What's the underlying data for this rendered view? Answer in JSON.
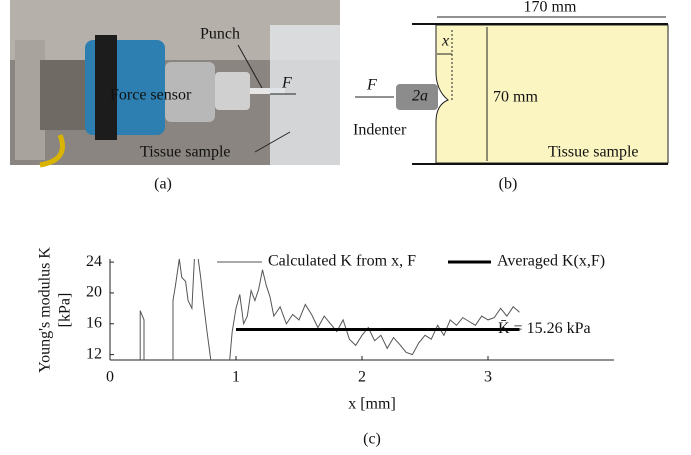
{
  "panel_a": {
    "labels": {
      "punch": "Punch",
      "force": "F",
      "sensor": "Force sensor",
      "sample": "Tissue sample"
    },
    "caption": "(a)"
  },
  "panel_b": {
    "labels": {
      "length": "170 mm",
      "x": "x",
      "force": "F",
      "diameter": "2a",
      "height": "70 mm",
      "indenter": "Indenter",
      "sample": "Tissue sample"
    },
    "caption": "(b)"
  },
  "chart_data": {
    "type": "line",
    "ylabel": [
      "Young's modulus K",
      "[kPa]"
    ],
    "xlabel": "x [mm]",
    "caption": "(c)",
    "annotation": "K̄ = 15.26 kPa",
    "xlim": [
      0,
      4
    ],
    "ylim": [
      11.3,
      24.4
    ],
    "xticks": [
      0,
      1,
      2,
      3
    ],
    "yticks": [
      12,
      16,
      20,
      24
    ],
    "series": [
      {
        "name": "Calculated K from x, F",
        "color": "#555555",
        "x": [
          0.24,
          0.24,
          0.27,
          0.27,
          0.4,
          0.5,
          0.5,
          0.52,
          0.55,
          0.57,
          0.6,
          0.62,
          0.65,
          0.67,
          0.68,
          0.7,
          0.72,
          0.74,
          0.77,
          0.8,
          0.9,
          0.95,
          0.97,
          1.0,
          1.03,
          1.06,
          1.09,
          1.12,
          1.15,
          1.18,
          1.21,
          1.24,
          1.27,
          1.3,
          1.35,
          1.4,
          1.45,
          1.5,
          1.55,
          1.6,
          1.65,
          1.7,
          1.75,
          1.8,
          1.85,
          1.9,
          1.95,
          2.0,
          2.05,
          2.1,
          2.15,
          2.2,
          2.25,
          2.3,
          2.35,
          2.4,
          2.45,
          2.5,
          2.55,
          2.6,
          2.65,
          2.7,
          2.75,
          2.8,
          2.85,
          2.9,
          2.95,
          3.0,
          3.05,
          3.1,
          3.15,
          3.2,
          3.25
        ],
        "values": [
          11.3,
          17.7,
          16.5,
          11.3,
          null,
          11.3,
          19,
          21,
          24.4,
          22,
          21.5,
          19,
          18,
          24.4,
          null,
          24.4,
          22,
          19,
          15,
          11.3,
          null,
          11.3,
          15,
          18,
          19.8,
          16,
          17,
          20.3,
          19,
          20.5,
          23,
          21,
          19.5,
          17,
          18.2,
          16,
          17.2,
          16.5,
          18.5,
          17.2,
          15.5,
          17,
          16,
          15,
          16.5,
          14,
          13.2,
          14.5,
          15.5,
          13.8,
          14.5,
          12.8,
          14.2,
          13.3,
          12.3,
          12,
          13.5,
          14.5,
          14,
          15.8,
          14.5,
          16.5,
          15.8,
          16.8,
          16.3,
          15.8,
          17,
          16.5,
          16.8,
          18,
          17,
          18.2,
          17.5
        ]
      },
      {
        "name": "Averaged K(x,F)",
        "color": "#000000",
        "x": [
          1.0,
          3.25
        ],
        "values": [
          15.26,
          15.26
        ]
      }
    ]
  }
}
